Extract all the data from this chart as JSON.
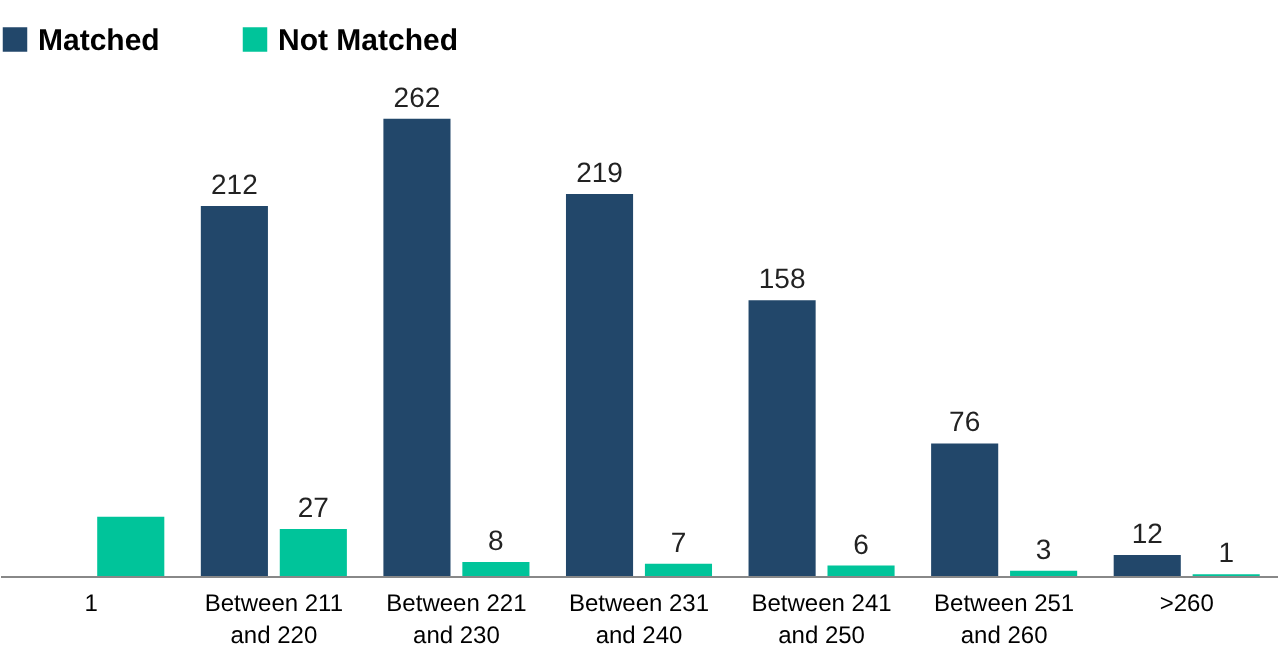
{
  "chart_data": {
    "type": "bar",
    "categories": [
      "1",
      "Between 211\nand 220",
      "Between 221\nand 230",
      "Between 231\nand 240",
      "Between 241\nand 250",
      "Between 251\nand 260",
      ">260"
    ],
    "series": [
      {
        "name": "Matched",
        "color": "#22476a",
        "values": [
          null,
          212,
          262,
          219,
          158,
          76,
          12
        ],
        "value_labels": [
          null,
          "212",
          "262",
          "219",
          "158",
          "76",
          "12"
        ]
      },
      {
        "name": "Not Matched",
        "color": "#00c49a",
        "values": [
          34,
          27,
          8,
          7,
          6,
          3,
          1
        ],
        "value_labels": [
          null,
          "27",
          "8",
          "7",
          "6",
          "3",
          "1"
        ]
      }
    ],
    "legend": "top"
  }
}
